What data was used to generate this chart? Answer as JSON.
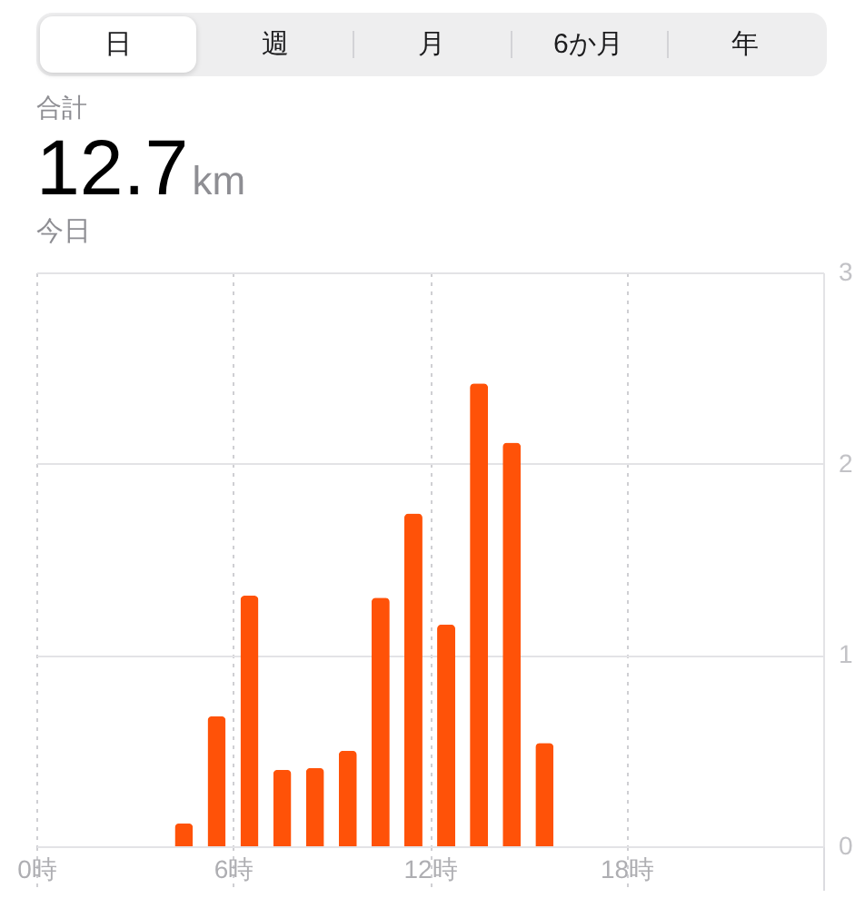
{
  "chart_data": {
    "type": "bar",
    "title": "12.7",
    "subtitle": "今日",
    "annotations": [
      "日",
      "週",
      "月",
      "6か月",
      "年",
      "合計",
      "km"
    ],
    "x": [
      4.5,
      5.5,
      6.5,
      7.5,
      8.5,
      9.5,
      10.5,
      11.5,
      12.5,
      13.5,
      14.5,
      15.5
    ],
    "values": [
      0.12,
      0.68,
      1.31,
      0.4,
      0.41,
      0.5,
      1.3,
      1.74,
      1.16,
      2.42,
      2.11,
      0.54
    ],
    "color": "#ff5208",
    "xlim": [
      0,
      24
    ],
    "xticks": [
      {
        "value": 0,
        "label": "0時"
      },
      {
        "value": 6,
        "label": "6時"
      },
      {
        "value": 12,
        "label": "12時"
      },
      {
        "value": 18,
        "label": "18時"
      },
      {
        "value": 24,
        "label": null
      }
    ],
    "ylim": [
      0,
      3
    ],
    "yticks": [
      0,
      1,
      2,
      3
    ],
    "grid": true
  }
}
